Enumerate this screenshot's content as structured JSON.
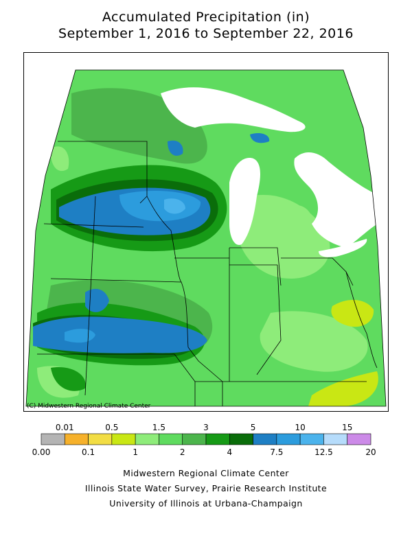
{
  "title_line1": "Accumulated Precipitation (in)",
  "title_line2": "September 1, 2016 to September 22, 2016",
  "copyright": "(C) Midwestern Regional Climate Center",
  "legend": {
    "colors": [
      "#b4b4b4",
      "#f6b12b",
      "#f2dd44",
      "#c9e714",
      "#8eec7a",
      "#5fdb5f",
      "#4cb54c",
      "#169a16",
      "#0a6d0a",
      "#1e7fc4",
      "#2c9cdd",
      "#4bb3ec",
      "#b6dcfb",
      "#cc8ae8"
    ],
    "top_labels": [
      "0.01",
      "0.5",
      "1.5",
      "3",
      "5",
      "10",
      "15"
    ],
    "bottom_labels": [
      "0.00",
      "0.1",
      "1",
      "2",
      "4",
      "7.5",
      "12.5",
      "20"
    ]
  },
  "credits": {
    "line1": "Midwestern Regional Climate Center",
    "line2": "Illinois State Water Survey, Prairie Research Institute",
    "line3": "University of Illinois at Urbana-Champaign"
  },
  "map_colors": {
    "lake": "#ffffff",
    "outside": "#ffffff"
  }
}
